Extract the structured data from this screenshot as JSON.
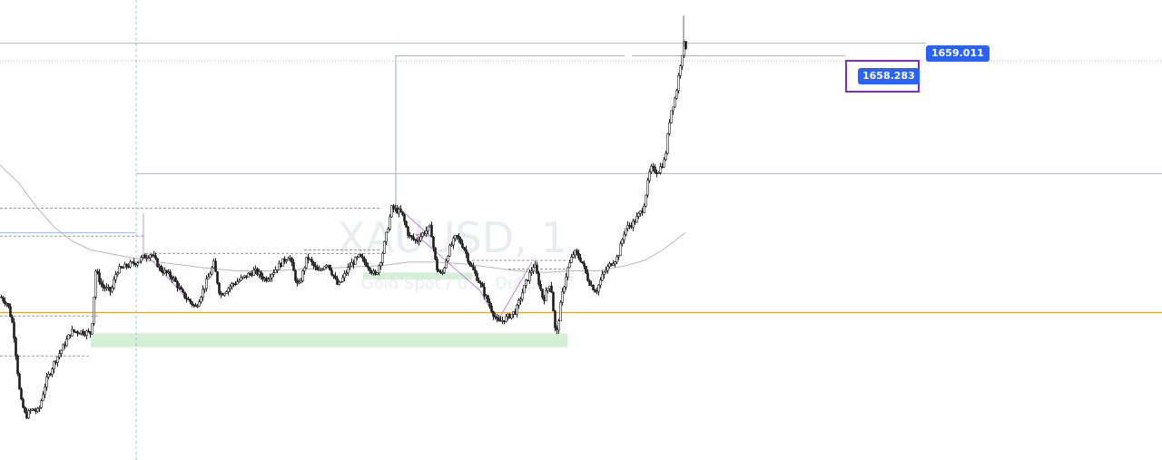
{
  "watermark": {
    "symbol": "XAUUSD, 1",
    "description": "Gold Spot / U.S. Dollar"
  },
  "price_labels": {
    "upper": "1659.011",
    "current": "1658.283"
  },
  "colors": {
    "candle_up": "#ffffff",
    "candle_down": "#1a1a1a",
    "candle_wick": "#222222",
    "horizontal_ray": "#9db5f0",
    "support_line": "#e0951a",
    "demand_zone": "#d4efd6",
    "moving_average": "#b8b8b8",
    "zigzag": "#c080d8",
    "highlight_box": "#7b2fbf",
    "label_bg": "#2962ff"
  },
  "chart_data": {
    "type": "candlestick",
    "symbol": "XAUUSD",
    "timeframe": "1",
    "axis": {
      "price_min": 1635.0,
      "price_max": 1661.5
    },
    "levels": {
      "upper_ray": 1659.011,
      "current_ray": 1658.283,
      "dotted_top": 1658.0,
      "mid_ray": 1651.5,
      "support": 1643.5
    },
    "zones": [
      {
        "name": "demand-lower",
        "from": 1641.5,
        "to": 1642.3
      },
      {
        "name": "demand-mid",
        "from": 1645.4,
        "to": 1645.8
      }
    ],
    "waypoints": [
      [
        0,
        1644.4
      ],
      [
        8,
        1644.0
      ],
      [
        14,
        1642.7
      ],
      [
        22,
        1638.5
      ],
      [
        28,
        1637.5
      ],
      [
        34,
        1637.9
      ],
      [
        42,
        1637.8
      ],
      [
        50,
        1639.5
      ],
      [
        60,
        1640.7
      ],
      [
        70,
        1641.6
      ],
      [
        78,
        1642.4
      ],
      [
        88,
        1642.4
      ],
      [
        100,
        1642.3
      ],
      [
        105,
        1645.9
      ],
      [
        112,
        1645.0
      ],
      [
        122,
        1644.7
      ],
      [
        128,
        1645.9
      ],
      [
        140,
        1646.2
      ],
      [
        150,
        1646.4
      ],
      [
        158,
        1646.7
      ],
      [
        166,
        1646.9
      ],
      [
        176,
        1646.0
      ],
      [
        190,
        1645.5
      ],
      [
        200,
        1644.6
      ],
      [
        215,
        1643.8
      ],
      [
        225,
        1645.0
      ],
      [
        235,
        1646.3
      ],
      [
        242,
        1644.5
      ],
      [
        255,
        1645.1
      ],
      [
        268,
        1645.5
      ],
      [
        280,
        1645.9
      ],
      [
        292,
        1645.4
      ],
      [
        305,
        1646.1
      ],
      [
        318,
        1646.8
      ],
      [
        328,
        1644.9
      ],
      [
        338,
        1646.7
      ],
      [
        350,
        1645.8
      ],
      [
        360,
        1646.4
      ],
      [
        372,
        1645.0
      ],
      [
        385,
        1646.2
      ],
      [
        395,
        1646.7
      ],
      [
        405,
        1646.2
      ],
      [
        413,
        1645.6
      ],
      [
        420,
        1646.7
      ],
      [
        426,
        1648.2
      ],
      [
        431,
        1649.5
      ],
      [
        436,
        1649.4
      ],
      [
        442,
        1649.2
      ],
      [
        450,
        1647.9
      ],
      [
        458,
        1647.6
      ],
      [
        466,
        1648.1
      ],
      [
        474,
        1648.4
      ],
      [
        480,
        1646.1
      ],
      [
        486,
        1645.6
      ],
      [
        494,
        1647.1
      ],
      [
        502,
        1647.9
      ],
      [
        510,
        1647.3
      ],
      [
        518,
        1646.2
      ],
      [
        528,
        1645.2
      ],
      [
        538,
        1644.0
      ],
      [
        548,
        1642.9
      ],
      [
        558,
        1643.2
      ],
      [
        568,
        1643.6
      ],
      [
        578,
        1645.1
      ],
      [
        588,
        1646.3
      ],
      [
        598,
        1644.2
      ],
      [
        606,
        1645.3
      ],
      [
        612,
        1642.0
      ],
      [
        618,
        1644.3
      ],
      [
        624,
        1645.9
      ],
      [
        632,
        1647.0
      ],
      [
        640,
        1646.5
      ],
      [
        648,
        1645.3
      ],
      [
        656,
        1644.7
      ],
      [
        664,
        1645.7
      ],
      [
        672,
        1646.3
      ],
      [
        680,
        1646.7
      ],
      [
        688,
        1648.3
      ],
      [
        698,
        1648.7
      ],
      [
        708,
        1649.5
      ],
      [
        716,
        1651.8
      ],
      [
        724,
        1651.6
      ],
      [
        732,
        1652.3
      ],
      [
        738,
        1655.0
      ],
      [
        744,
        1656.0
      ],
      [
        750,
        1658.2
      ],
      [
        754,
        1659.2
      ],
      [
        756,
        1658.4
      ]
    ],
    "moving_average": [
      [
        0,
        1652.0
      ],
      [
        20,
        1651.0
      ],
      [
        40,
        1649.6
      ],
      [
        60,
        1648.4
      ],
      [
        80,
        1647.6
      ],
      [
        100,
        1647.1
      ],
      [
        130,
        1646.8
      ],
      [
        160,
        1646.5
      ],
      [
        190,
        1646.3
      ],
      [
        220,
        1646.1
      ],
      [
        260,
        1645.9
      ],
      [
        300,
        1645.9
      ],
      [
        340,
        1646.0
      ],
      [
        380,
        1646.1
      ],
      [
        420,
        1646.2
      ],
      [
        450,
        1646.4
      ],
      [
        480,
        1646.4
      ],
      [
        510,
        1646.3
      ],
      [
        540,
        1646.1
      ],
      [
        570,
        1645.9
      ],
      [
        600,
        1645.8
      ],
      [
        630,
        1645.9
      ],
      [
        660,
        1645.9
      ],
      [
        690,
        1646.2
      ],
      [
        710,
        1646.5
      ],
      [
        730,
        1647.1
      ],
      [
        745,
        1647.7
      ],
      [
        755,
        1648.1
      ]
    ]
  }
}
